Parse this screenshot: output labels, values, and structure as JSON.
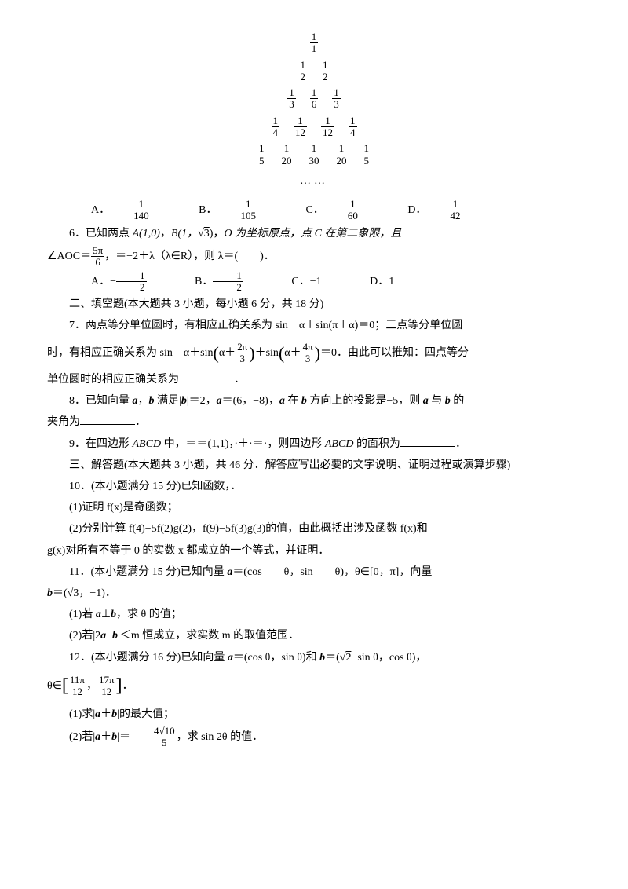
{
  "triangle": {
    "rows": [
      [
        {
          "n": "1",
          "d": "1"
        }
      ],
      [
        {
          "n": "1",
          "d": "2"
        },
        {
          "n": "1",
          "d": "2"
        }
      ],
      [
        {
          "n": "1",
          "d": "3"
        },
        {
          "n": "1",
          "d": "6"
        },
        {
          "n": "1",
          "d": "3"
        }
      ],
      [
        {
          "n": "1",
          "d": "4"
        },
        {
          "n": "1",
          "d": "12"
        },
        {
          "n": "1",
          "d": "12"
        },
        {
          "n": "1",
          "d": "4"
        }
      ],
      [
        {
          "n": "1",
          "d": "5"
        },
        {
          "n": "1",
          "d": "20"
        },
        {
          "n": "1",
          "d": "30"
        },
        {
          "n": "1",
          "d": "20"
        },
        {
          "n": "1",
          "d": "5"
        }
      ]
    ],
    "dots": "……"
  },
  "q5_options": {
    "A_label": "A．",
    "A_num": "1",
    "A_den": "140",
    "B_label": "B．",
    "B_num": "1",
    "B_den": "105",
    "C_label": "C．",
    "C_num": "1",
    "C_den": "60",
    "D_label": "D．",
    "D_num": "1",
    "D_den": "42"
  },
  "q6": {
    "text_a": "6．已知两点 ",
    "A": "A(1,0)",
    "comma1": "，",
    "B_pre": "B(1，",
    "B_sqrt": "3",
    "B_post": ")",
    "comma2": "，",
    "O_text": "O 为坐标原点，点 C 在第二象限，且",
    "line2_pre": "∠AOC＝",
    "frac_n": "5π",
    "frac_d": "6",
    "line2_mid": "，＝−2＋λ（λ∈R），则 λ＝(　　)．",
    "opts": {
      "A_label": "A．−",
      "A_num": "1",
      "A_den": "2",
      "B_label": "B．",
      "B_num": "1",
      "B_den": "2",
      "C": "C．−1",
      "D": "D．1"
    }
  },
  "section2": "二、填空题(本大题共 3 小题，每小题 6 分，共 18 分)",
  "q7": {
    "l1": "7．两点等分单位圆时，有相应正确关系为 sin　α＋sin(π＋α)＝0；三点等分单位圆",
    "l2_pre": "时，有相应正确关系为 sin　α＋sin",
    "f1_n": "2π",
    "f1_d": "3",
    "mid": "＋sin",
    "f2_n": "4π",
    "f2_d": "3",
    "l2_post": "＝0．由此可以推知：四点等分",
    "l3_pre": "单位圆时的相应正确关系为",
    "l3_post": "．"
  },
  "q8": {
    "l1_a": "8．已知向量 ",
    "a": "a",
    "comma": "，",
    "b": "b",
    "l1_b": " 满足|",
    "l1_c": "|＝2，",
    "l1_d": "＝(6，−8)，",
    "l1_e": " 在 ",
    "l1_f": " 方向上的投影是−5，则 ",
    "l1_g": " 与 ",
    "l1_h": " 的",
    "l2_pre": "夹角为",
    "l2_post": "．"
  },
  "q9": {
    "pre": "9．在四边形 ",
    "ABCD": "ABCD",
    "mid": " 中，＝＝(1,1)，·＋·＝·，则四边形 ",
    "post": " 的面积为",
    "end": "．"
  },
  "section3": "三、解答题(本大题共 3 小题，共 46 分．解答应写出必要的文字说明、证明过程或演算步骤)",
  "q10": {
    "head": "10．(本小题满分 15 分)已知函数，．",
    "p1": "(1)证明 f(x)是奇函数；",
    "p2": "(2)分别计算 f(4)−5f(2)g(2)，f(9)−5f(3)g(3)的值，由此概括出涉及函数 f(x)和",
    "p2b": "g(x)对所有不等于 0 的实数 x 都成立的一个等式，并证明．"
  },
  "q11": {
    "head_a": "11．(本小题满分 15 分)已知向量 ",
    "a": "a",
    "head_b": "＝(cos　　θ，sin　　θ)，θ∈[0，π]，向量",
    "l2_pre": "b",
    "l2_mid": "＝(",
    "sqrt3": "3",
    "l2_post": "，−1)．",
    "p1_a": "(1)若 ",
    "p1_b": "⊥",
    "p1_c": "，求 θ 的值；",
    "p2_a": "(2)若|2",
    "p2_b": "−",
    "p2_c": "|＜m 恒成立，求实数 m 的取值范围．"
  },
  "q12": {
    "head_a": "12．(本小题满分 16 分)已知向量 ",
    "head_b": "＝(cos θ，sin θ)和 ",
    "head_c": "＝(",
    "sqrt2": "2",
    "head_d": "−sin θ，cos θ)，",
    "l2_pre": "θ∈",
    "f1_n": "11π",
    "f1_d": "12",
    "comma": "，",
    "f2_n": "17π",
    "f2_d": "12",
    "l2_post": "．",
    "p1_a": "(1)求|",
    "p1_b": "＋",
    "p1_c": "|的最大值；",
    "p2_a": "(2)若|",
    "p2_b": "＋",
    "p2_c": "|＝",
    "f3_n": "4√10",
    "f3_d": "5",
    "p2_d": "，求 sin 2θ 的值．"
  }
}
